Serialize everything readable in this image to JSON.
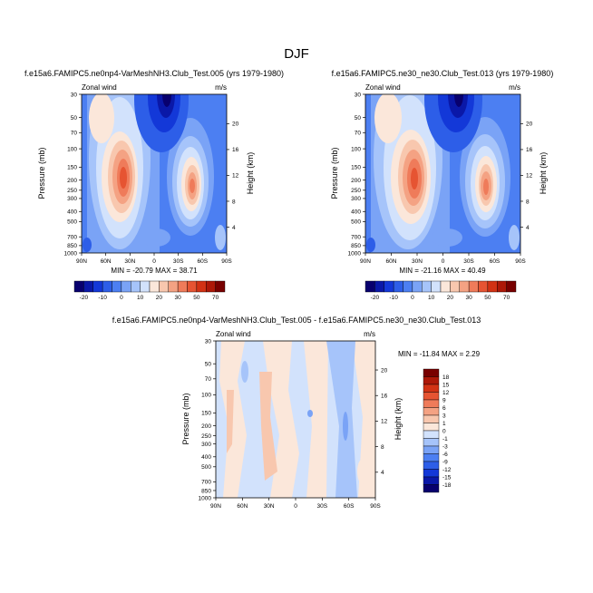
{
  "figure": {
    "title": "DJF"
  },
  "chart_data": [
    {
      "type": "heatmap",
      "panel": "left",
      "title": "f.e15a6.FAMIPC5.ne0np4-VarMeshNH3.Club_Test.005 (yrs 1979-1980)",
      "left_label": "Zonal wind",
      "right_label": "m/s",
      "xlabel": "",
      "ylabel": "Pressure (mb)",
      "y2label": "Height (km)",
      "x_ticks": [
        "90N",
        "60N",
        "30N",
        "0",
        "30S",
        "60S",
        "90S"
      ],
      "y_ticks": [
        "30",
        "50",
        "70",
        "100",
        "150",
        "200",
        "250",
        "300",
        "400",
        "500",
        "700",
        "850",
        "1000"
      ],
      "y2_ticks": [
        "20",
        "16",
        "12",
        "8",
        "4"
      ],
      "min_max_text": "MIN = -20.79   MAX = 38.71",
      "min": -20.79,
      "max": 38.71,
      "features": [
        {
          "kind": "jet",
          "lat": 30,
          "pressure": 200,
          "value": 38.71
        },
        {
          "kind": "jet",
          "lat": -50,
          "pressure": 250,
          "value": 32
        },
        {
          "kind": "easterly",
          "lat": 5,
          "pressure": 30,
          "value": -20.79
        }
      ]
    },
    {
      "type": "heatmap",
      "panel": "right",
      "title": "f.e15a6.FAMIPC5.ne30_ne30.Club_Test.013 (yrs 1979-1980)",
      "left_label": "Zonal wind",
      "right_label": "m/s",
      "xlabel": "",
      "ylabel": "Pressure (mb)",
      "y2label": "Height (km)",
      "x_ticks": [
        "90N",
        "60N",
        "30N",
        "0",
        "30S",
        "60S",
        "90S"
      ],
      "y_ticks": [
        "30",
        "50",
        "70",
        "100",
        "150",
        "200",
        "250",
        "300",
        "400",
        "500",
        "700",
        "850",
        "1000"
      ],
      "y2_ticks": [
        "20",
        "16",
        "12",
        "8",
        "4"
      ],
      "min_max_text": "MIN = -21.16   MAX = 40.49",
      "min": -21.16,
      "max": 40.49,
      "features": [
        {
          "kind": "jet",
          "lat": 30,
          "pressure": 200,
          "value": 40.49
        },
        {
          "kind": "jet",
          "lat": -50,
          "pressure": 250,
          "value": 33
        },
        {
          "kind": "easterly",
          "lat": 5,
          "pressure": 30,
          "value": -21.16
        }
      ]
    },
    {
      "type": "heatmap",
      "panel": "difference",
      "title": "f.e15a6.FAMIPC5.ne0np4-VarMeshNH3.Club_Test.005 - f.e15a6.FAMIPC5.ne30_ne30.Club_Test.013",
      "left_label": "Zonal wind",
      "right_label": "m/s",
      "xlabel": "",
      "ylabel": "Pressure (mb)",
      "y2label": "Height (km)",
      "x_ticks": [
        "90N",
        "60N",
        "30N",
        "0",
        "30S",
        "60S",
        "90S"
      ],
      "y_ticks": [
        "30",
        "50",
        "70",
        "100",
        "150",
        "200",
        "250",
        "300",
        "400",
        "500",
        "700",
        "850",
        "1000"
      ],
      "y2_ticks": [
        "20",
        "16",
        "12",
        "8",
        "4"
      ],
      "min_max_text": "MIN = -11.84   MAX =   2.29",
      "min": -11.84,
      "max": 2.29
    }
  ],
  "colorbars": {
    "main": {
      "labels": [
        "-20",
        "-10",
        "0",
        "10",
        "20",
        "30",
        "50",
        "70"
      ],
      "colors": [
        "#08006e",
        "#0a18a8",
        "#1338d8",
        "#2d5ee8",
        "#4c7ff2",
        "#7aa3f6",
        "#a6c4fa",
        "#d2e2fc",
        "#fbe7da",
        "#f8c7ae",
        "#f4a283",
        "#ef7b5a",
        "#e65432",
        "#d23214",
        "#ad1808",
        "#780000"
      ]
    },
    "diff": {
      "labels": [
        "18",
        "15",
        "12",
        "9",
        "6",
        "3",
        "1",
        "0",
        "-1",
        "-3",
        "-6",
        "-9",
        "-12",
        "-15",
        "-18"
      ],
      "colors": [
        "#780000",
        "#ad1808",
        "#d23214",
        "#e65432",
        "#ef7b5a",
        "#f4a283",
        "#f8c7ae",
        "#fbe7da",
        "#d2e2fc",
        "#a6c4fa",
        "#7aa3f6",
        "#4c7ff2",
        "#2d5ee8",
        "#1338d8",
        "#0a18a8",
        "#08006e"
      ]
    }
  }
}
